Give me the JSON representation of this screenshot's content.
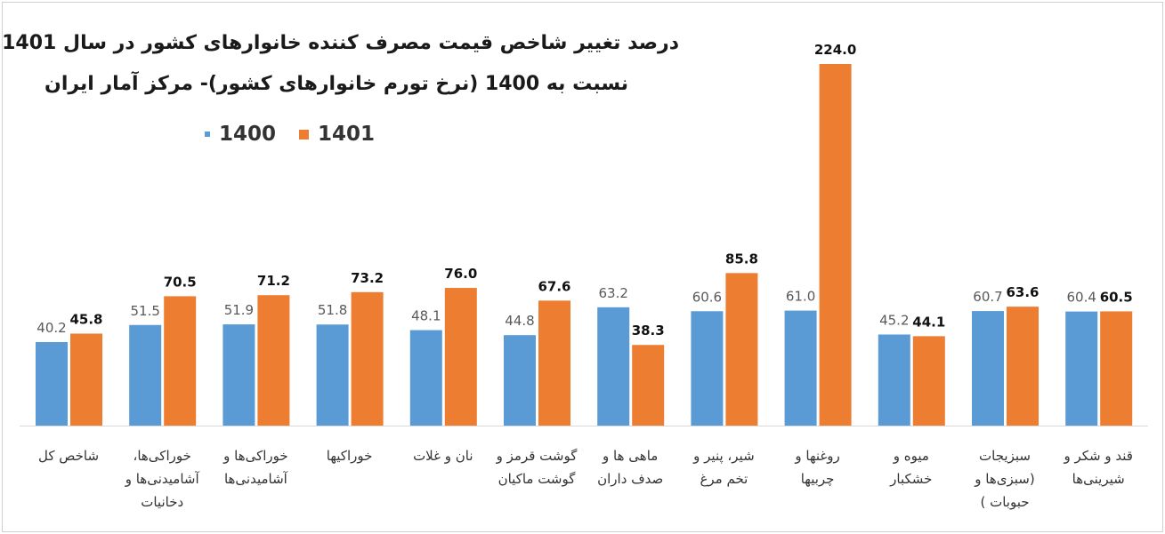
{
  "chart_data": {
    "type": "bar",
    "title_lines": [
      "درصد تغییر شاخص قیمت مصرف کننده خانوارهای کشور در سال  1401",
      "نسبت به 1400 (نرخ تورم خانوارهای کشور)- مرکز آمار ایران"
    ],
    "legend": [
      "1400",
      "1401"
    ],
    "legend_position": "top-left",
    "categories": [
      [
        "شاخص کل"
      ],
      [
        "خوراکی‌ها،",
        "آشامیدنی‌ها و",
        "دخانیات"
      ],
      [
        "خوراکی‌ها و",
        "آشامیدنی‌ها"
      ],
      [
        "خوراکیها"
      ],
      [
        "نان و غلات"
      ],
      [
        "گوشت قرمز و",
        "گوشت ماکیان"
      ],
      [
        "ماهی ها و",
        "صدف داران"
      ],
      [
        "شیر، پنیر و",
        "تخم مرغ"
      ],
      [
        "روغنها و",
        "چربیها"
      ],
      [
        "میوه و",
        "خشکبار"
      ],
      [
        "سبزیجات",
        "(سبزی‌ها و",
        "حبوبات )"
      ],
      [
        "قند و شکر و",
        "شیرینی‌ها"
      ]
    ],
    "series": [
      {
        "name": "1400",
        "color": "#5b9bd5",
        "labels": [
          "40.2",
          "51.5",
          "51.9",
          "51.8",
          "48.1",
          "44.8",
          "63.2",
          "60.6",
          "61.0",
          "45.2",
          "60.7",
          "60.4"
        ],
        "values": [
          40.2,
          51.5,
          51.9,
          51.8,
          48.1,
          44.8,
          63.2,
          60.6,
          61.0,
          45.2,
          60.7,
          60.4
        ]
      },
      {
        "name": "1401",
        "color": "#ed7d31",
        "labels": [
          "45.8",
          "70.5",
          "71.2",
          "73.2",
          "76.0",
          "67.6",
          "38.3",
          "85.8",
          "224.0",
          "44.1",
          "63.6",
          "60.5"
        ],
        "values": [
          45.8,
          70.5,
          71.2,
          73.2,
          76.0,
          67.6,
          38.3,
          85.8,
          224.0,
          44.1,
          63.6,
          60.5
        ]
      }
    ],
    "ylim": [
      -15,
      224
    ],
    "grid": false
  }
}
